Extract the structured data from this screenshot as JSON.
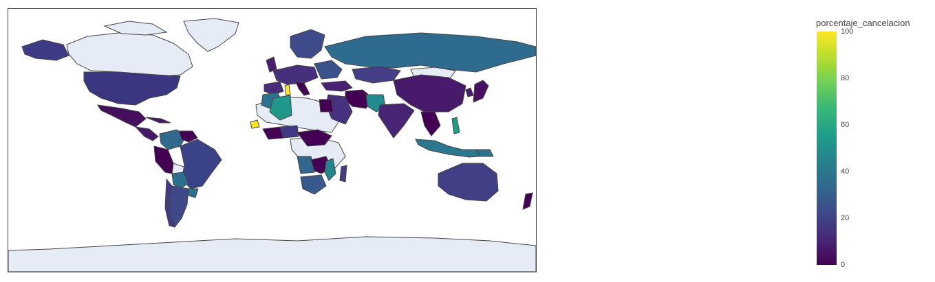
{
  "colorbar": {
    "title": "porcentaje_cancelacion",
    "ticks": [
      {
        "value": 100,
        "label": "100"
      },
      {
        "value": 80,
        "label": "80"
      },
      {
        "value": 60,
        "label": "60"
      },
      {
        "value": 40,
        "label": "40"
      },
      {
        "value": 20,
        "label": "20"
      },
      {
        "value": 0,
        "label": "0"
      }
    ],
    "range": [
      0,
      100
    ],
    "colorscale": "viridis",
    "colors": [
      "#440154",
      "#482878",
      "#3e4989",
      "#31688e",
      "#26828e",
      "#1f9e89",
      "#35b779",
      "#6ece58",
      "#b5de2b",
      "#fde725"
    ]
  },
  "map": {
    "projection": "equirectangular",
    "land_color": "#e5ecf6",
    "border_color": "#444444"
  }
}
